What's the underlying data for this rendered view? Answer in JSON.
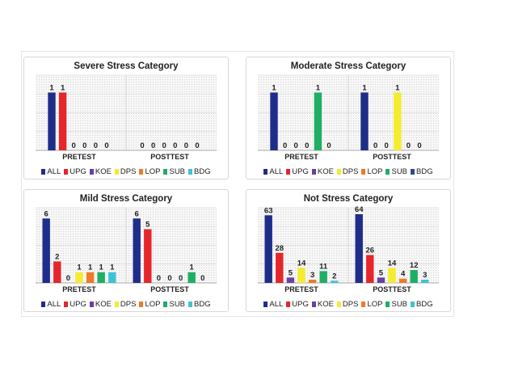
{
  "chart_data": [
    {
      "type": "bar",
      "title": "Severe Stress Category",
      "categories": [
        "PRETEST",
        "POSTTEST"
      ],
      "series": [
        {
          "name": "ALL",
          "values": [
            1,
            null
          ]
        },
        {
          "name": "UPG",
          "values": [
            1,
            0
          ]
        },
        {
          "name": "KOE",
          "values": [
            0,
            0
          ]
        },
        {
          "name": "DPS",
          "values": [
            0,
            0
          ]
        },
        {
          "name": "LOP",
          "values": [
            0,
            0
          ]
        },
        {
          "name": "SUB",
          "values": [
            0,
            0
          ]
        },
        {
          "name": "BDG",
          "values": [
            null,
            0
          ]
        }
      ],
      "ylim": [
        0,
        1.3
      ],
      "grid": true,
      "legend_position": "bottom"
    },
    {
      "type": "bar",
      "title": "Moderate Stress Category",
      "categories": [
        "PRETEST",
        "POSTTEST"
      ],
      "series": [
        {
          "name": "ALL",
          "values": [
            1,
            1
          ]
        },
        {
          "name": "UPG",
          "values": [
            0,
            0
          ]
        },
        {
          "name": "KOE",
          "values": [
            0,
            0
          ]
        },
        {
          "name": "DPS",
          "values": [
            0,
            1
          ]
        },
        {
          "name": "LOP",
          "values": [
            null,
            0
          ]
        },
        {
          "name": "SUB",
          "values": [
            1,
            0
          ]
        },
        {
          "name": "BDG",
          "values": [
            0,
            null
          ]
        }
      ],
      "ylim": [
        0,
        1.3
      ],
      "grid": true,
      "legend_position": "bottom"
    },
    {
      "type": "bar",
      "title": "Mild Stress Category",
      "categories": [
        "PRETEST",
        "POSTTEST"
      ],
      "series": [
        {
          "name": "ALL",
          "values": [
            6,
            6
          ]
        },
        {
          "name": "UPG",
          "values": [
            2,
            5
          ]
        },
        {
          "name": "KOE",
          "values": [
            0,
            0
          ]
        },
        {
          "name": "DPS",
          "values": [
            1,
            0
          ]
        },
        {
          "name": "LOP",
          "values": [
            1,
            0
          ]
        },
        {
          "name": "SUB",
          "values": [
            1,
            1
          ]
        },
        {
          "name": "BDG",
          "values": [
            1,
            0
          ]
        }
      ],
      "ylim": [
        0,
        7
      ],
      "grid": true,
      "legend_position": "bottom"
    },
    {
      "type": "bar",
      "title": "Not Stress Category",
      "categories": [
        "PRETEST",
        "POSTTEST"
      ],
      "series": [
        {
          "name": "ALL",
          "values": [
            63,
            64
          ]
        },
        {
          "name": "UPG",
          "values": [
            28,
            26
          ]
        },
        {
          "name": "KOE",
          "values": [
            5,
            5
          ]
        },
        {
          "name": "DPS",
          "values": [
            14,
            14
          ]
        },
        {
          "name": "LOP",
          "values": [
            3,
            4
          ]
        },
        {
          "name": "SUB",
          "values": [
            11,
            12
          ]
        },
        {
          "name": "BDG",
          "values": [
            2,
            3
          ]
        }
      ],
      "ylim": [
        0,
        70
      ],
      "grid": true,
      "legend_position": "bottom"
    }
  ],
  "colors": {
    "ALL": "#1f2d8a",
    "UPG": "#e5262b",
    "KOE": "#6a3fa3",
    "DPS": "#f4ec2e",
    "LOP": "#f07a26",
    "SUB": "#1fae66",
    "BDG": "#3cc3d6",
    "BDG_alt": "#2a4a8a"
  },
  "legends": [
    [
      {
        "label": "ALL",
        "color": "#1f2d8a"
      },
      {
        "label": "UPG",
        "color": "#e5262b"
      },
      {
        "label": "KOE",
        "color": "#6a3fa3"
      },
      {
        "label": "DPS",
        "color": "#f4ec2e"
      },
      {
        "label": "LOP",
        "color": "#f07a26"
      },
      {
        "label": "SUB",
        "color": "#1fae66"
      },
      {
        "label": "BDG",
        "color": "#3cc3d6"
      }
    ],
    [
      {
        "label": "ALL",
        "color": "#1f2d8a"
      },
      {
        "label": "UPG",
        "color": "#e5262b"
      },
      {
        "label": "KOE",
        "color": "#6a3fa3"
      },
      {
        "label": "DPS",
        "color": "#f4ec2e"
      },
      {
        "label": "LOP",
        "color": "#f07a26"
      },
      {
        "label": "SUB",
        "color": "#1fae66"
      },
      {
        "label": "BDG",
        "color": "#2a4a8a"
      }
    ],
    [
      {
        "label": "ALL",
        "color": "#1f2d8a"
      },
      {
        "label": "UPG",
        "color": "#e5262b"
      },
      {
        "label": "KOE",
        "color": "#6a3fa3"
      },
      {
        "label": "DPS",
        "color": "#f4ec2e"
      },
      {
        "label": "LOP",
        "color": "#f07a26"
      },
      {
        "label": "SUB",
        "color": "#1fae66"
      },
      {
        "label": "BDG",
        "color": "#3cc3d6"
      }
    ],
    [
      {
        "label": "ALL",
        "color": "#1f2d8a"
      },
      {
        "label": "UPG",
        "color": "#e5262b"
      },
      {
        "label": "KOE",
        "color": "#6a3fa3"
      },
      {
        "label": "DPS",
        "color": "#f4ec2e"
      },
      {
        "label": "LOP",
        "color": "#f07a26"
      },
      {
        "label": "SUB",
        "color": "#1fae66"
      },
      {
        "label": "BDG",
        "color": "#3cc3d6"
      }
    ]
  ]
}
